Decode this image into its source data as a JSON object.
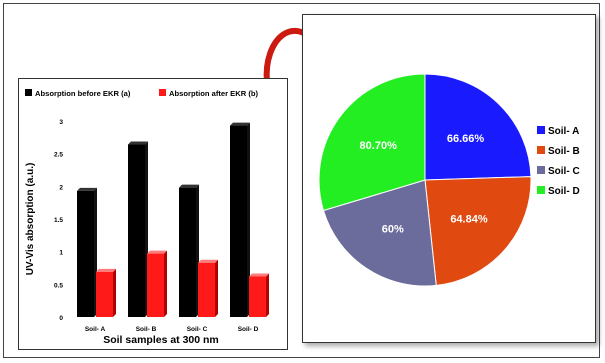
{
  "chart_data": [
    {
      "type": "bar",
      "categories": [
        "Soil- A",
        "Soil- B",
        "Soil- C",
        "Soil- D"
      ],
      "series": [
        {
          "name": "Absorption before EKR (a)",
          "color": "#000000",
          "values": [
            1.93,
            2.64,
            1.98,
            2.93
          ]
        },
        {
          "name": "Absorption after EKR (b)",
          "color": "#ff1a1a",
          "values": [
            0.69,
            0.97,
            0.83,
            0.62
          ]
        }
      ],
      "xlabel": "Soil samples at 300 nm",
      "ylabel": "UV-Vis absorption (a.u.)",
      "ylim": [
        0,
        3
      ],
      "yticks": [
        "0",
        "0.5",
        "1",
        "1.5",
        "2",
        "2.5",
        "3"
      ],
      "legend": "top",
      "grid": false
    },
    {
      "type": "pie",
      "labels": [
        "Soil- A",
        "Soil- B",
        "Soil- C",
        "Soil- D"
      ],
      "values": [
        66.66,
        64.84,
        60,
        80.7
      ],
      "data_labels": [
        "66.66%",
        "64.84%",
        "60%",
        "80.70%"
      ],
      "colors": [
        "#1a1aff",
        "#e04a10",
        "#6b6b9c",
        "#22ee22"
      ],
      "legend": "right"
    }
  ],
  "arrow_color": "#cc1a10"
}
